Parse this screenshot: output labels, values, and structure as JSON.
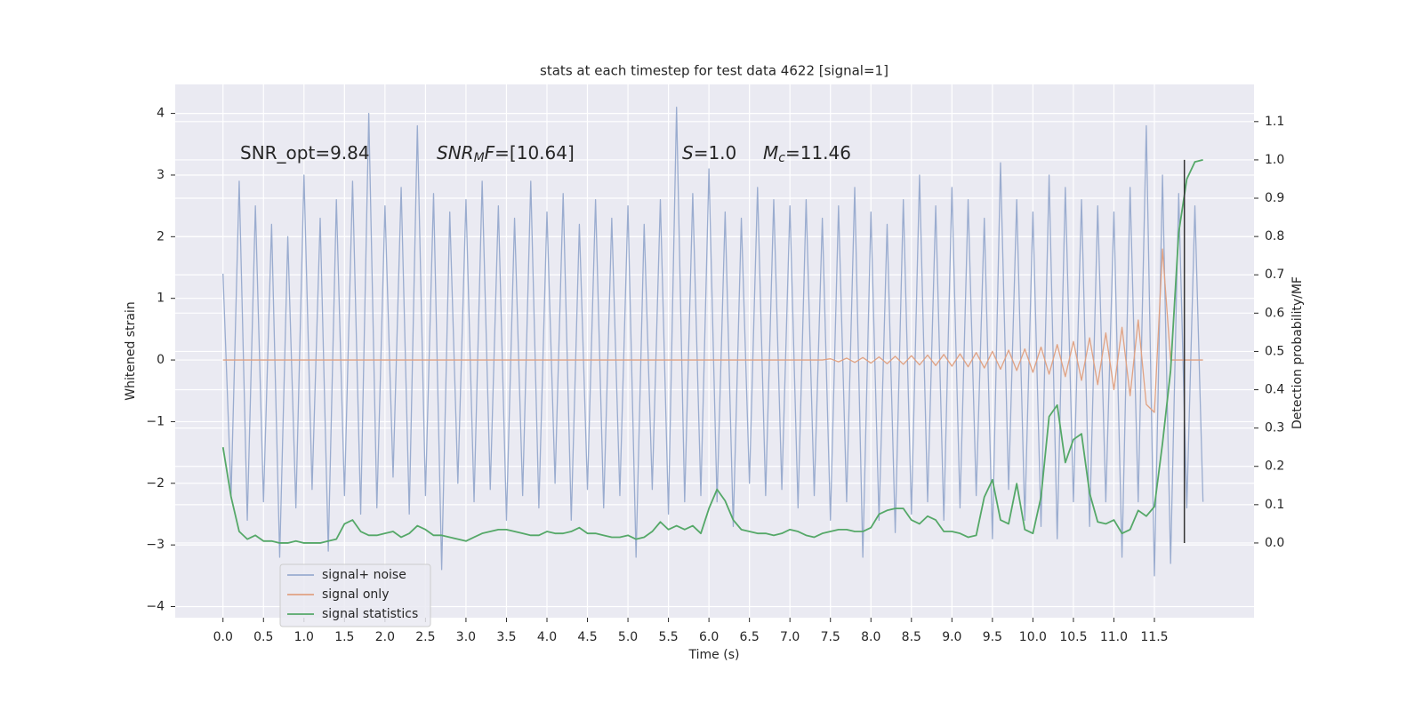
{
  "chart_data": {
    "type": "line",
    "title": "stats at each timestep for test data 4622 [signal=1]",
    "xlabel": "Time (s)",
    "ylabel": "Whitened strain",
    "y2label": "Detection probability/MF",
    "xlim": [
      -0.59,
      12.73
    ],
    "ylim": [
      -4.18,
      4.47
    ],
    "y2lim": [
      -0.195,
      1.197
    ],
    "xticks": [
      {
        "value": 0,
        "label": "0.0"
      },
      {
        "value": 0.5,
        "label": "0.5"
      },
      {
        "value": 1,
        "label": "1.0"
      },
      {
        "value": 1.5,
        "label": "1.5"
      },
      {
        "value": 2,
        "label": "2.0"
      },
      {
        "value": 2.5,
        "label": "2.5"
      },
      {
        "value": 3,
        "label": "3.0"
      },
      {
        "value": 3.5,
        "label": "3.5"
      },
      {
        "value": 4,
        "label": "4.0"
      },
      {
        "value": 4.5,
        "label": "4.5"
      },
      {
        "value": 5,
        "label": "5.0"
      },
      {
        "value": 5.5,
        "label": "5.5"
      },
      {
        "value": 6,
        "label": "6.0"
      },
      {
        "value": 6.5,
        "label": "6.5"
      },
      {
        "value": 7,
        "label": "7.0"
      },
      {
        "value": 7.5,
        "label": "7.5"
      },
      {
        "value": 8,
        "label": "8.0"
      },
      {
        "value": 8.5,
        "label": "8.5"
      },
      {
        "value": 9,
        "label": "9.0"
      },
      {
        "value": 9.5,
        "label": "9.5"
      },
      {
        "value": 10,
        "label": "10.0"
      },
      {
        "value": 10.5,
        "label": "10.5"
      },
      {
        "value": 11,
        "label": "11.0"
      },
      {
        "value": 11.5,
        "label": "11.5"
      }
    ],
    "yticks": [
      {
        "value": -4,
        "label": "−4"
      },
      {
        "value": -3,
        "label": "−3"
      },
      {
        "value": -2,
        "label": "−2"
      },
      {
        "value": -1,
        "label": "−1"
      },
      0,
      1,
      2,
      3,
      4
    ],
    "y2ticks": [
      {
        "value": 0,
        "label": "0.0"
      },
      {
        "value": 0.1,
        "label": "0.1"
      },
      {
        "value": 0.2,
        "label": "0.2"
      },
      {
        "value": 0.3,
        "label": "0.3"
      },
      {
        "value": 0.4,
        "label": "0.4"
      },
      {
        "value": 0.5,
        "label": "0.5"
      },
      {
        "value": 0.6,
        "label": "0.6"
      },
      {
        "value": 0.7,
        "label": "0.7"
      },
      {
        "value": 0.8,
        "label": "0.8"
      },
      {
        "value": 0.9,
        "label": "0.9"
      },
      {
        "value": 1.0,
        "label": "1.0"
      },
      {
        "value": 1.1,
        "label": "1.1"
      }
    ],
    "grid": true,
    "legend": "lower left",
    "x": [
      0,
      0.1,
      0.2,
      0.3,
      0.4,
      0.5,
      0.6,
      0.7,
      0.8,
      0.9,
      1,
      1.1,
      1.2,
      1.3,
      1.4,
      1.5,
      1.6,
      1.7,
      1.8,
      1.9,
      2,
      2.1,
      2.2,
      2.3,
      2.4,
      2.5,
      2.6,
      2.7,
      2.8,
      2.9,
      3,
      3.1,
      3.2,
      3.3,
      3.4,
      3.5,
      3.6,
      3.7,
      3.8,
      3.9,
      4,
      4.1,
      4.2,
      4.3,
      4.4,
      4.5,
      4.6,
      4.7,
      4.8,
      4.9,
      5,
      5.1,
      5.2,
      5.3,
      5.4,
      5.5,
      5.6,
      5.7,
      5.8,
      5.9,
      6,
      6.1,
      6.2,
      6.3,
      6.4,
      6.5,
      6.6,
      6.7,
      6.8,
      6.9,
      7,
      7.1,
      7.2,
      7.3,
      7.4,
      7.5,
      7.6,
      7.7,
      7.8,
      7.9,
      8,
      8.1,
      8.2,
      8.3,
      8.4,
      8.5,
      8.6,
      8.7,
      8.8,
      8.9,
      9,
      9.1,
      9.2,
      9.3,
      9.4,
      9.5,
      9.6,
      9.7,
      9.8,
      9.9,
      10,
      10.1,
      10.2,
      10.3,
      10.4,
      10.5,
      10.6,
      10.7,
      10.8,
      10.9,
      11,
      11.1,
      11.2,
      11.3,
      11.4,
      11.5,
      11.6,
      11.7,
      11.8,
      11.9,
      12,
      12.1
    ],
    "series": [
      {
        "name": "signal+ noise",
        "color": "#9aaccf",
        "values": [
          1.4,
          -2.2,
          2.9,
          -2.6,
          2.5,
          -2.3,
          2.2,
          -3.2,
          2.0,
          -2.4,
          3.0,
          -2.1,
          2.3,
          -3.1,
          2.6,
          -2.2,
          2.9,
          -2.5,
          4.0,
          -2.4,
          2.5,
          -1.9,
          2.8,
          -2.5,
          3.8,
          -2.2,
          2.7,
          -3.4,
          2.4,
          -2.0,
          2.6,
          -2.3,
          2.9,
          -2.1,
          2.5,
          -2.6,
          2.3,
          -2.2,
          2.9,
          -2.4,
          2.4,
          -2.0,
          2.7,
          -2.6,
          2.2,
          -2.1,
          2.6,
          -2.4,
          2.3,
          -2.2,
          2.5,
          -3.2,
          2.2,
          -2.1,
          2.6,
          -2.5,
          4.1,
          -2.3,
          2.7,
          -2.2,
          3.1,
          -2.3,
          2.4,
          -2.7,
          2.3,
          -2.0,
          2.8,
          -2.2,
          2.6,
          -2.1,
          2.5,
          -2.4,
          2.6,
          -2.2,
          2.3,
          -2.6,
          2.5,
          -2.3,
          2.8,
          -3.2,
          2.4,
          -2.6,
          2.2,
          -2.8,
          2.6,
          -2.5,
          3.0,
          -2.3,
          2.5,
          -2.6,
          2.8,
          -2.4,
          2.6,
          -2.2,
          2.3,
          -2.9,
          3.2,
          -2.1,
          2.6,
          -2.6,
          2.4,
          -2.7,
          3.0,
          -2.9,
          2.8,
          -2.3,
          2.6,
          -2.7,
          2.5,
          -2.3,
          2.4,
          -3.2,
          2.8,
          -2.3,
          3.8,
          -3.5,
          3.0,
          -3.3,
          2.7,
          -2.4,
          2.5,
          -2.3
        ]
      },
      {
        "name": "signal only",
        "color": "#e0a283",
        "values": [
          0,
          0,
          0,
          0,
          0,
          0,
          0,
          0,
          0,
          0,
          0,
          0,
          0,
          0,
          0,
          0,
          0,
          0,
          0,
          0,
          0,
          0,
          0,
          0,
          0,
          0,
          0,
          0,
          0,
          0,
          0,
          0,
          0,
          0,
          0,
          0,
          0,
          0,
          0,
          0,
          0,
          0,
          0,
          0,
          0,
          0,
          0,
          0,
          0,
          0,
          0,
          0,
          0,
          0,
          0,
          0,
          0,
          0,
          0,
          0,
          0,
          0,
          0,
          0,
          0,
          0,
          0,
          0,
          0,
          0,
          0,
          0,
          0,
          0,
          0,
          0.02,
          -0.03,
          0.03,
          -0.04,
          0.04,
          -0.05,
          0.05,
          -0.06,
          0.06,
          -0.07,
          0.07,
          -0.08,
          0.08,
          -0.09,
          0.09,
          -0.1,
          0.1,
          -0.11,
          0.12,
          -0.13,
          0.14,
          -0.15,
          0.16,
          -0.17,
          0.18,
          -0.2,
          0.21,
          -0.23,
          0.25,
          -0.27,
          0.3,
          -0.33,
          0.36,
          -0.4,
          0.44,
          -0.48,
          0.53,
          -0.58,
          0.65,
          -0.72,
          -0.85,
          1.8,
          0,
          0,
          0,
          0,
          0
        ]
      },
      {
        "name": "signal statistics",
        "color": "#55a868",
        "axis": "y2",
        "values": [
          0.25,
          0.12,
          0.03,
          0.01,
          0.02,
          0.005,
          0.005,
          0,
          0,
          0.005,
          0,
          0,
          0,
          0.005,
          0.01,
          0.05,
          0.06,
          0.03,
          0.02,
          0.02,
          0.025,
          0.03,
          0.015,
          0.025,
          0.045,
          0.035,
          0.02,
          0.02,
          0.015,
          0.01,
          0.005,
          0.015,
          0.025,
          0.03,
          0.035,
          0.035,
          0.03,
          0.025,
          0.02,
          0.02,
          0.03,
          0.025,
          0.025,
          0.03,
          0.04,
          0.025,
          0.025,
          0.02,
          0.015,
          0.015,
          0.02,
          0.01,
          0.015,
          0.03,
          0.055,
          0.035,
          0.045,
          0.035,
          0.045,
          0.025,
          0.09,
          0.14,
          0.11,
          0.06,
          0.035,
          0.03,
          0.025,
          0.025,
          0.02,
          0.025,
          0.035,
          0.03,
          0.02,
          0.015,
          0.025,
          0.03,
          0.035,
          0.035,
          0.03,
          0.03,
          0.04,
          0.075,
          0.085,
          0.09,
          0.09,
          0.06,
          0.05,
          0.07,
          0.06,
          0.03,
          0.03,
          0.025,
          0.015,
          0.02,
          0.12,
          0.165,
          0.06,
          0.05,
          0.155,
          0.035,
          0.025,
          0.12,
          0.33,
          0.36,
          0.21,
          0.27,
          0.285,
          0.13,
          0.055,
          0.05,
          0.06,
          0.025,
          0.035,
          0.085,
          0.07,
          0.095,
          0.26,
          0.45,
          0.81,
          0.95,
          0.995,
          1.0
        ]
      }
    ],
    "vline": {
      "x": 11.87,
      "y2": [
        0,
        1.0
      ]
    },
    "annotations": [
      {
        "parts": [
          {
            "text": "SNR_opt=9.84"
          }
        ]
      },
      {
        "parts": [
          {
            "text": "SNR",
            "italic": true
          },
          {
            "text": "M",
            "italic": true,
            "sub": true
          },
          {
            "text": "F",
            "italic": true
          },
          {
            "text": "=[10.64]"
          }
        ]
      },
      {
        "parts": [
          {
            "text": "S",
            "italic": true
          },
          {
            "text": "=1.0"
          }
        ]
      },
      {
        "parts": [
          {
            "text": "M",
            "italic": true
          },
          {
            "text": "c",
            "italic": true,
            "sub": true
          },
          {
            "text": "=11.46"
          }
        ]
      }
    ]
  }
}
